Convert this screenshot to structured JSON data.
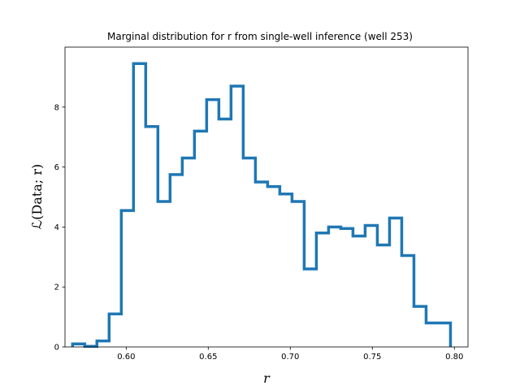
{
  "chart_data": {
    "type": "line",
    "style": "step-histogram",
    "title": "Marginal distribution for r from single-well inference (well 253)",
    "xlabel": "r",
    "ylabel": "ℒ(Data; r)",
    "xlim": [
      0.5627,
      0.8083
    ],
    "ylim": [
      0,
      10.0
    ],
    "xticks": [
      "0.60",
      "0.65",
      "0.70",
      "0.75",
      "0.80"
    ],
    "xtick_values": [
      0.6,
      0.65,
      0.7,
      0.75,
      0.8
    ],
    "yticks": [
      "0",
      "2",
      "4",
      "6",
      "8"
    ],
    "ytick_values": [
      0,
      2,
      4,
      6,
      8
    ],
    "color": "#1f77b4",
    "bin_width": 0.00743,
    "bin_edges_start": 0.5673,
    "values": [
      0.1,
      0.02,
      0.2,
      1.1,
      4.55,
      9.45,
      7.35,
      4.85,
      5.75,
      6.3,
      7.2,
      8.25,
      7.6,
      8.7,
      6.3,
      5.5,
      5.35,
      5.1,
      4.85,
      2.6,
      3.8,
      4.0,
      3.95,
      3.7,
      4.05,
      3.4,
      4.3,
      3.05,
      1.35,
      0.8,
      0.8
    ]
  }
}
